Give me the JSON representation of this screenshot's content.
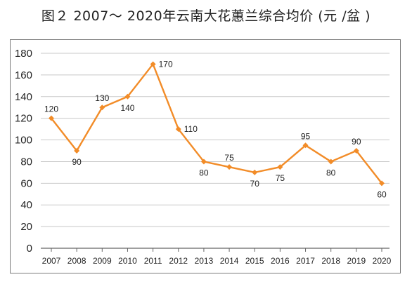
{
  "chart_data": {
    "type": "line",
    "title": "图２ 2007～ 2020年云南大花蕙兰综合均价 (元 /盆 )",
    "xlabel": "",
    "ylabel": "",
    "categories": [
      "2007",
      "2008",
      "2009",
      "2010",
      "2011",
      "2012",
      "2013",
      "2014",
      "2015",
      "2016",
      "2017",
      "2018",
      "2019",
      "2020"
    ],
    "series": [
      {
        "values": [
          120,
          90,
          130,
          140,
          170,
          110,
          80,
          75,
          70,
          75,
          95,
          80,
          90,
          60
        ]
      }
    ],
    "ylim": [
      0,
      180
    ],
    "yticks": [
      "0",
      "20",
      "40",
      "60",
      "80",
      "100",
      "120",
      "140",
      "160",
      "180"
    ],
    "data_labels": [
      "120",
      "90",
      "130",
      "140",
      "170",
      "110",
      "80",
      "75",
      "70",
      "75",
      "95",
      "80",
      "90",
      "60"
    ],
    "grid": true,
    "line_color": "#f28c28"
  }
}
